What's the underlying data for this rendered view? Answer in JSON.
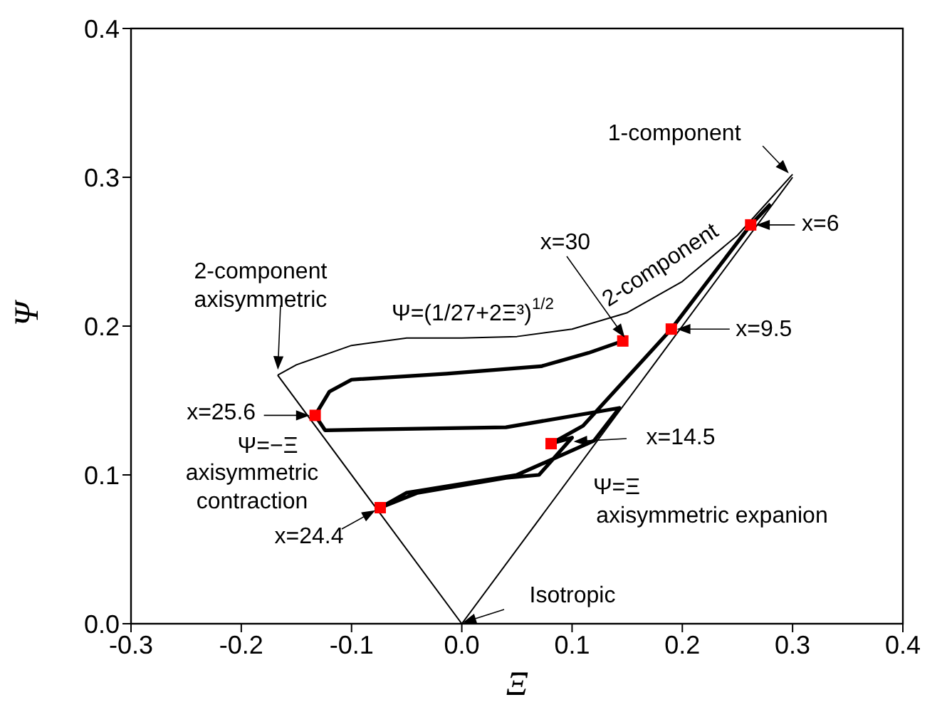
{
  "chart_data": {
    "type": "line",
    "xlabel": "Ξ",
    "ylabel": "Ψ",
    "xlim": [
      -0.3,
      0.4
    ],
    "ylim": [
      0,
      0.4
    ],
    "xticks": [
      -0.3,
      -0.2,
      -0.1,
      {
        "value": 0,
        "label": "0.0"
      },
      0.1,
      0.2,
      0.3,
      0.4
    ],
    "yticks": [
      {
        "value": 0,
        "label": "0.0"
      },
      0.1,
      0.2,
      0.3,
      0.4
    ],
    "grid": false,
    "series": [
      {
        "color": "#000000",
        "marker": "none",
        "x": [
          0.28,
          0.262,
          0.19,
          0.11,
          0.081,
          0.1,
          0.07,
          0.04,
          -0.04,
          -0.074,
          -0.05,
          0.05,
          0.12,
          0.143,
          0.04,
          -0.124,
          -0.133,
          -0.12,
          -0.1,
          -0.014,
          0.072,
          0.115,
          0.146
        ],
        "values": [
          0.282,
          0.268,
          0.198,
          0.133,
          0.121,
          0.125,
          0.1,
          0.098,
          0.088,
          0.078,
          0.088,
          0.1,
          0.123,
          0.145,
          0.132,
          0.13,
          0.14,
          0.156,
          0.164,
          0.168,
          0.173,
          0.182,
          0.19
        ]
      },
      {
        "color": "#000000",
        "marker": "none",
        "x": [
          0,
          -0.167
        ],
        "values": [
          0,
          0.167
        ]
      },
      {
        "color": "#000000",
        "marker": "none",
        "x": [
          0,
          0.3
        ],
        "values": [
          0,
          0.3
        ]
      },
      {
        "color": "#000000",
        "marker": "none",
        "x": [
          -0.167,
          -0.15,
          -0.1,
          -0.05,
          0,
          0.05,
          0.1,
          0.15,
          0.2,
          0.25,
          0.3
        ],
        "values": [
          0.167,
          0.174,
          0.187,
          0.192,
          0.192,
          0.193,
          0.198,
          0.209,
          0.23,
          0.261,
          0.302
        ]
      },
      {
        "type": "scatter",
        "color": "#ff0000",
        "marker": "square",
        "x": [
          0.262,
          0.19,
          0.081,
          -0.074,
          -0.133,
          0.146
        ],
        "values": [
          0.268,
          0.198,
          0.121,
          0.078,
          0.14,
          0.19
        ]
      }
    ],
    "annotations": [
      {
        "text": "1-component",
        "x": 0.3,
        "y": 0.3
      },
      {
        "text": "2-component",
        "x": 0.18,
        "y": 0.22
      },
      {
        "text": "2-component\naxisymmetric",
        "x": -0.167,
        "y": 0.167
      },
      "Ψ=(1/27+2Ξ³)$^{1/2}$",
      "x=30",
      {
        "text": "x=6",
        "x": 0.262,
        "y": 0.268
      },
      {
        "text": "x=9.5",
        "x": 0.19,
        "y": 0.198
      },
      "x=14.5",
      {
        "text": "x=25.6",
        "x": -0.133,
        "y": 0.14
      },
      {
        "text": "x=24.4",
        "x": -0.074,
        "y": 0.078
      },
      "Ψ=−Ξ",
      "axisymmetric\ncontraction",
      "Ψ=Ξ",
      "axisymmetric expanion",
      "Isotropic"
    ]
  }
}
